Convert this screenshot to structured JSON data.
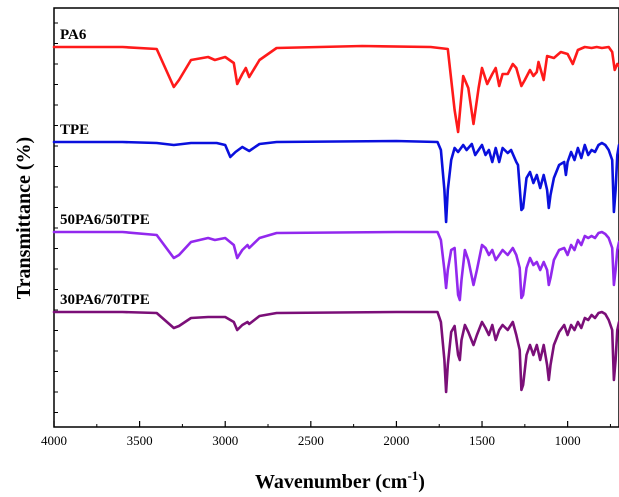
{
  "chart_data": {
    "type": "line",
    "xlabel": "Wavenumber (cm",
    "xlabel_sup": "-1",
    "xlabel_tail": ")",
    "ylabel": "Transmittance (%)",
    "xlim": [
      4000,
      700
    ],
    "x_reversed": true,
    "x_ticks": [
      4000,
      3500,
      3000,
      2500,
      2000,
      1500,
      1000
    ],
    "x_tick_labels": [
      "4000",
      "3500",
      "3000",
      "2500",
      "2000",
      "1500",
      "1000"
    ],
    "y_ticks_labeled": false,
    "grid": false,
    "legend": "none",
    "series": [
      {
        "name": "PA6",
        "color": "#ff1a1a",
        "points": [
          [
            4000,
            47
          ],
          [
            3600,
            47
          ],
          [
            3400,
            49
          ],
          [
            3300,
            87
          ],
          [
            3270,
            80
          ],
          [
            3200,
            60
          ],
          [
            3100,
            57
          ],
          [
            3060,
            60
          ],
          [
            3000,
            57
          ],
          [
            2950,
            63
          ],
          [
            2930,
            84
          ],
          [
            2900,
            74
          ],
          [
            2880,
            68
          ],
          [
            2860,
            77
          ],
          [
            2800,
            60
          ],
          [
            2700,
            48
          ],
          [
            2200,
            46
          ],
          [
            1800,
            47
          ],
          [
            1700,
            49
          ],
          [
            1660,
            110
          ],
          [
            1640,
            132
          ],
          [
            1610,
            76
          ],
          [
            1580,
            88
          ],
          [
            1550,
            124
          ],
          [
            1520,
            88
          ],
          [
            1500,
            68
          ],
          [
            1470,
            84
          ],
          [
            1440,
            74
          ],
          [
            1420,
            68
          ],
          [
            1400,
            86
          ],
          [
            1380,
            74
          ],
          [
            1350,
            74
          ],
          [
            1320,
            64
          ],
          [
            1300,
            68
          ],
          [
            1270,
            86
          ],
          [
            1250,
            80
          ],
          [
            1220,
            70
          ],
          [
            1200,
            76
          ],
          [
            1180,
            72
          ],
          [
            1170,
            62
          ],
          [
            1140,
            80
          ],
          [
            1120,
            56
          ],
          [
            1080,
            58
          ],
          [
            1040,
            52
          ],
          [
            1000,
            54
          ],
          [
            970,
            64
          ],
          [
            940,
            50
          ],
          [
            900,
            47
          ],
          [
            860,
            48
          ],
          [
            830,
            47
          ],
          [
            800,
            48
          ],
          [
            760,
            47
          ],
          [
            740,
            52
          ],
          [
            725,
            70
          ],
          [
            710,
            64
          ],
          [
            700,
            66
          ]
        ]
      },
      {
        "name": "TPE",
        "color": "#0a10dd",
        "points": [
          [
            4000,
            142
          ],
          [
            3600,
            142
          ],
          [
            3400,
            143
          ],
          [
            3300,
            145
          ],
          [
            3200,
            143
          ],
          [
            3050,
            143
          ],
          [
            3000,
            145
          ],
          [
            2970,
            157
          ],
          [
            2940,
            152
          ],
          [
            2900,
            147
          ],
          [
            2860,
            151
          ],
          [
            2800,
            144
          ],
          [
            2700,
            142
          ],
          [
            2000,
            141
          ],
          [
            1760,
            142
          ],
          [
            1740,
            150
          ],
          [
            1720,
            190
          ],
          [
            1710,
            222
          ],
          [
            1700,
            190
          ],
          [
            1680,
            160
          ],
          [
            1660,
            148
          ],
          [
            1640,
            152
          ],
          [
            1610,
            145
          ],
          [
            1590,
            150
          ],
          [
            1560,
            144
          ],
          [
            1540,
            155
          ],
          [
            1520,
            150
          ],
          [
            1500,
            145
          ],
          [
            1480,
            155
          ],
          [
            1460,
            150
          ],
          [
            1440,
            162
          ],
          [
            1420,
            148
          ],
          [
            1400,
            162
          ],
          [
            1380,
            148
          ],
          [
            1350,
            153
          ],
          [
            1330,
            150
          ],
          [
            1300,
            162
          ],
          [
            1290,
            165
          ],
          [
            1270,
            210
          ],
          [
            1260,
            208
          ],
          [
            1240,
            178
          ],
          [
            1220,
            172
          ],
          [
            1200,
            183
          ],
          [
            1180,
            175
          ],
          [
            1160,
            188
          ],
          [
            1140,
            175
          ],
          [
            1120,
            190
          ],
          [
            1110,
            208
          ],
          [
            1100,
            195
          ],
          [
            1080,
            178
          ],
          [
            1050,
            165
          ],
          [
            1020,
            162
          ],
          [
            1010,
            175
          ],
          [
            1000,
            162
          ],
          [
            980,
            152
          ],
          [
            960,
            160
          ],
          [
            940,
            148
          ],
          [
            920,
            158
          ],
          [
            900,
            145
          ],
          [
            880,
            155
          ],
          [
            860,
            150
          ],
          [
            840,
            152
          ],
          [
            820,
            145
          ],
          [
            800,
            143
          ],
          [
            780,
            145
          ],
          [
            760,
            150
          ],
          [
            740,
            160
          ],
          [
            730,
            212
          ],
          [
            720,
            190
          ],
          [
            710,
            155
          ],
          [
            700,
            145
          ]
        ]
      },
      {
        "name": "50PA6/50TPE",
        "color": "#9228ee",
        "points": [
          [
            4000,
            232
          ],
          [
            3600,
            232
          ],
          [
            3400,
            235
          ],
          [
            3300,
            258
          ],
          [
            3270,
            255
          ],
          [
            3200,
            242
          ],
          [
            3100,
            238
          ],
          [
            3060,
            240
          ],
          [
            3000,
            238
          ],
          [
            2950,
            245
          ],
          [
            2930,
            258
          ],
          [
            2900,
            250
          ],
          [
            2870,
            245
          ],
          [
            2860,
            248
          ],
          [
            2800,
            238
          ],
          [
            2700,
            233
          ],
          [
            2000,
            232
          ],
          [
            1760,
            232
          ],
          [
            1740,
            240
          ],
          [
            1720,
            270
          ],
          [
            1710,
            288
          ],
          [
            1700,
            270
          ],
          [
            1680,
            250
          ],
          [
            1660,
            248
          ],
          [
            1640,
            295
          ],
          [
            1630,
            300
          ],
          [
            1620,
            280
          ],
          [
            1600,
            250
          ],
          [
            1580,
            260
          ],
          [
            1550,
            285
          ],
          [
            1530,
            270
          ],
          [
            1500,
            245
          ],
          [
            1480,
            248
          ],
          [
            1460,
            255
          ],
          [
            1440,
            250
          ],
          [
            1420,
            260
          ],
          [
            1400,
            255
          ],
          [
            1380,
            250
          ],
          [
            1350,
            255
          ],
          [
            1320,
            248
          ],
          [
            1300,
            255
          ],
          [
            1280,
            268
          ],
          [
            1270,
            298
          ],
          [
            1260,
            295
          ],
          [
            1240,
            268
          ],
          [
            1220,
            258
          ],
          [
            1200,
            265
          ],
          [
            1180,
            262
          ],
          [
            1160,
            270
          ],
          [
            1140,
            262
          ],
          [
            1120,
            270
          ],
          [
            1110,
            285
          ],
          [
            1100,
            278
          ],
          [
            1080,
            260
          ],
          [
            1050,
            250
          ],
          [
            1020,
            248
          ],
          [
            1000,
            255
          ],
          [
            980,
            245
          ],
          [
            960,
            250
          ],
          [
            940,
            240
          ],
          [
            920,
            245
          ],
          [
            900,
            236
          ],
          [
            880,
            238
          ],
          [
            860,
            236
          ],
          [
            840,
            238
          ],
          [
            820,
            233
          ],
          [
            800,
            232
          ],
          [
            780,
            234
          ],
          [
            760,
            238
          ],
          [
            740,
            248
          ],
          [
            730,
            285
          ],
          [
            720,
            270
          ],
          [
            710,
            250
          ],
          [
            700,
            242
          ]
        ]
      },
      {
        "name": "30PA6/70TPE",
        "color": "#7b0f78",
        "points": [
          [
            4000,
            312
          ],
          [
            3600,
            312
          ],
          [
            3400,
            313
          ],
          [
            3300,
            328
          ],
          [
            3270,
            326
          ],
          [
            3200,
            318
          ],
          [
            3100,
            317
          ],
          [
            3000,
            317
          ],
          [
            2950,
            322
          ],
          [
            2930,
            330
          ],
          [
            2900,
            325
          ],
          [
            2870,
            322
          ],
          [
            2860,
            324
          ],
          [
            2800,
            316
          ],
          [
            2700,
            313
          ],
          [
            2000,
            312
          ],
          [
            1760,
            312
          ],
          [
            1740,
            322
          ],
          [
            1720,
            360
          ],
          [
            1710,
            392
          ],
          [
            1700,
            365
          ],
          [
            1680,
            332
          ],
          [
            1660,
            326
          ],
          [
            1640,
            355
          ],
          [
            1630,
            360
          ],
          [
            1620,
            340
          ],
          [
            1600,
            325
          ],
          [
            1580,
            332
          ],
          [
            1550,
            345
          ],
          [
            1530,
            335
          ],
          [
            1500,
            322
          ],
          [
            1480,
            328
          ],
          [
            1460,
            335
          ],
          [
            1440,
            325
          ],
          [
            1420,
            340
          ],
          [
            1400,
            330
          ],
          [
            1380,
            325
          ],
          [
            1350,
            330
          ],
          [
            1320,
            322
          ],
          [
            1300,
            335
          ],
          [
            1280,
            350
          ],
          [
            1270,
            390
          ],
          [
            1260,
            385
          ],
          [
            1240,
            355
          ],
          [
            1220,
            345
          ],
          [
            1200,
            355
          ],
          [
            1180,
            345
          ],
          [
            1160,
            360
          ],
          [
            1140,
            345
          ],
          [
            1120,
            365
          ],
          [
            1110,
            380
          ],
          [
            1100,
            365
          ],
          [
            1080,
            345
          ],
          [
            1050,
            332
          ],
          [
            1020,
            325
          ],
          [
            1000,
            335
          ],
          [
            980,
            325
          ],
          [
            960,
            330
          ],
          [
            940,
            322
          ],
          [
            920,
            328
          ],
          [
            900,
            318
          ],
          [
            880,
            320
          ],
          [
            860,
            315
          ],
          [
            840,
            318
          ],
          [
            820,
            313
          ],
          [
            800,
            312
          ],
          [
            780,
            314
          ],
          [
            760,
            320
          ],
          [
            740,
            330
          ],
          [
            730,
            380
          ],
          [
            720,
            360
          ],
          [
            710,
            330
          ],
          [
            700,
            322
          ]
        ]
      }
    ]
  }
}
